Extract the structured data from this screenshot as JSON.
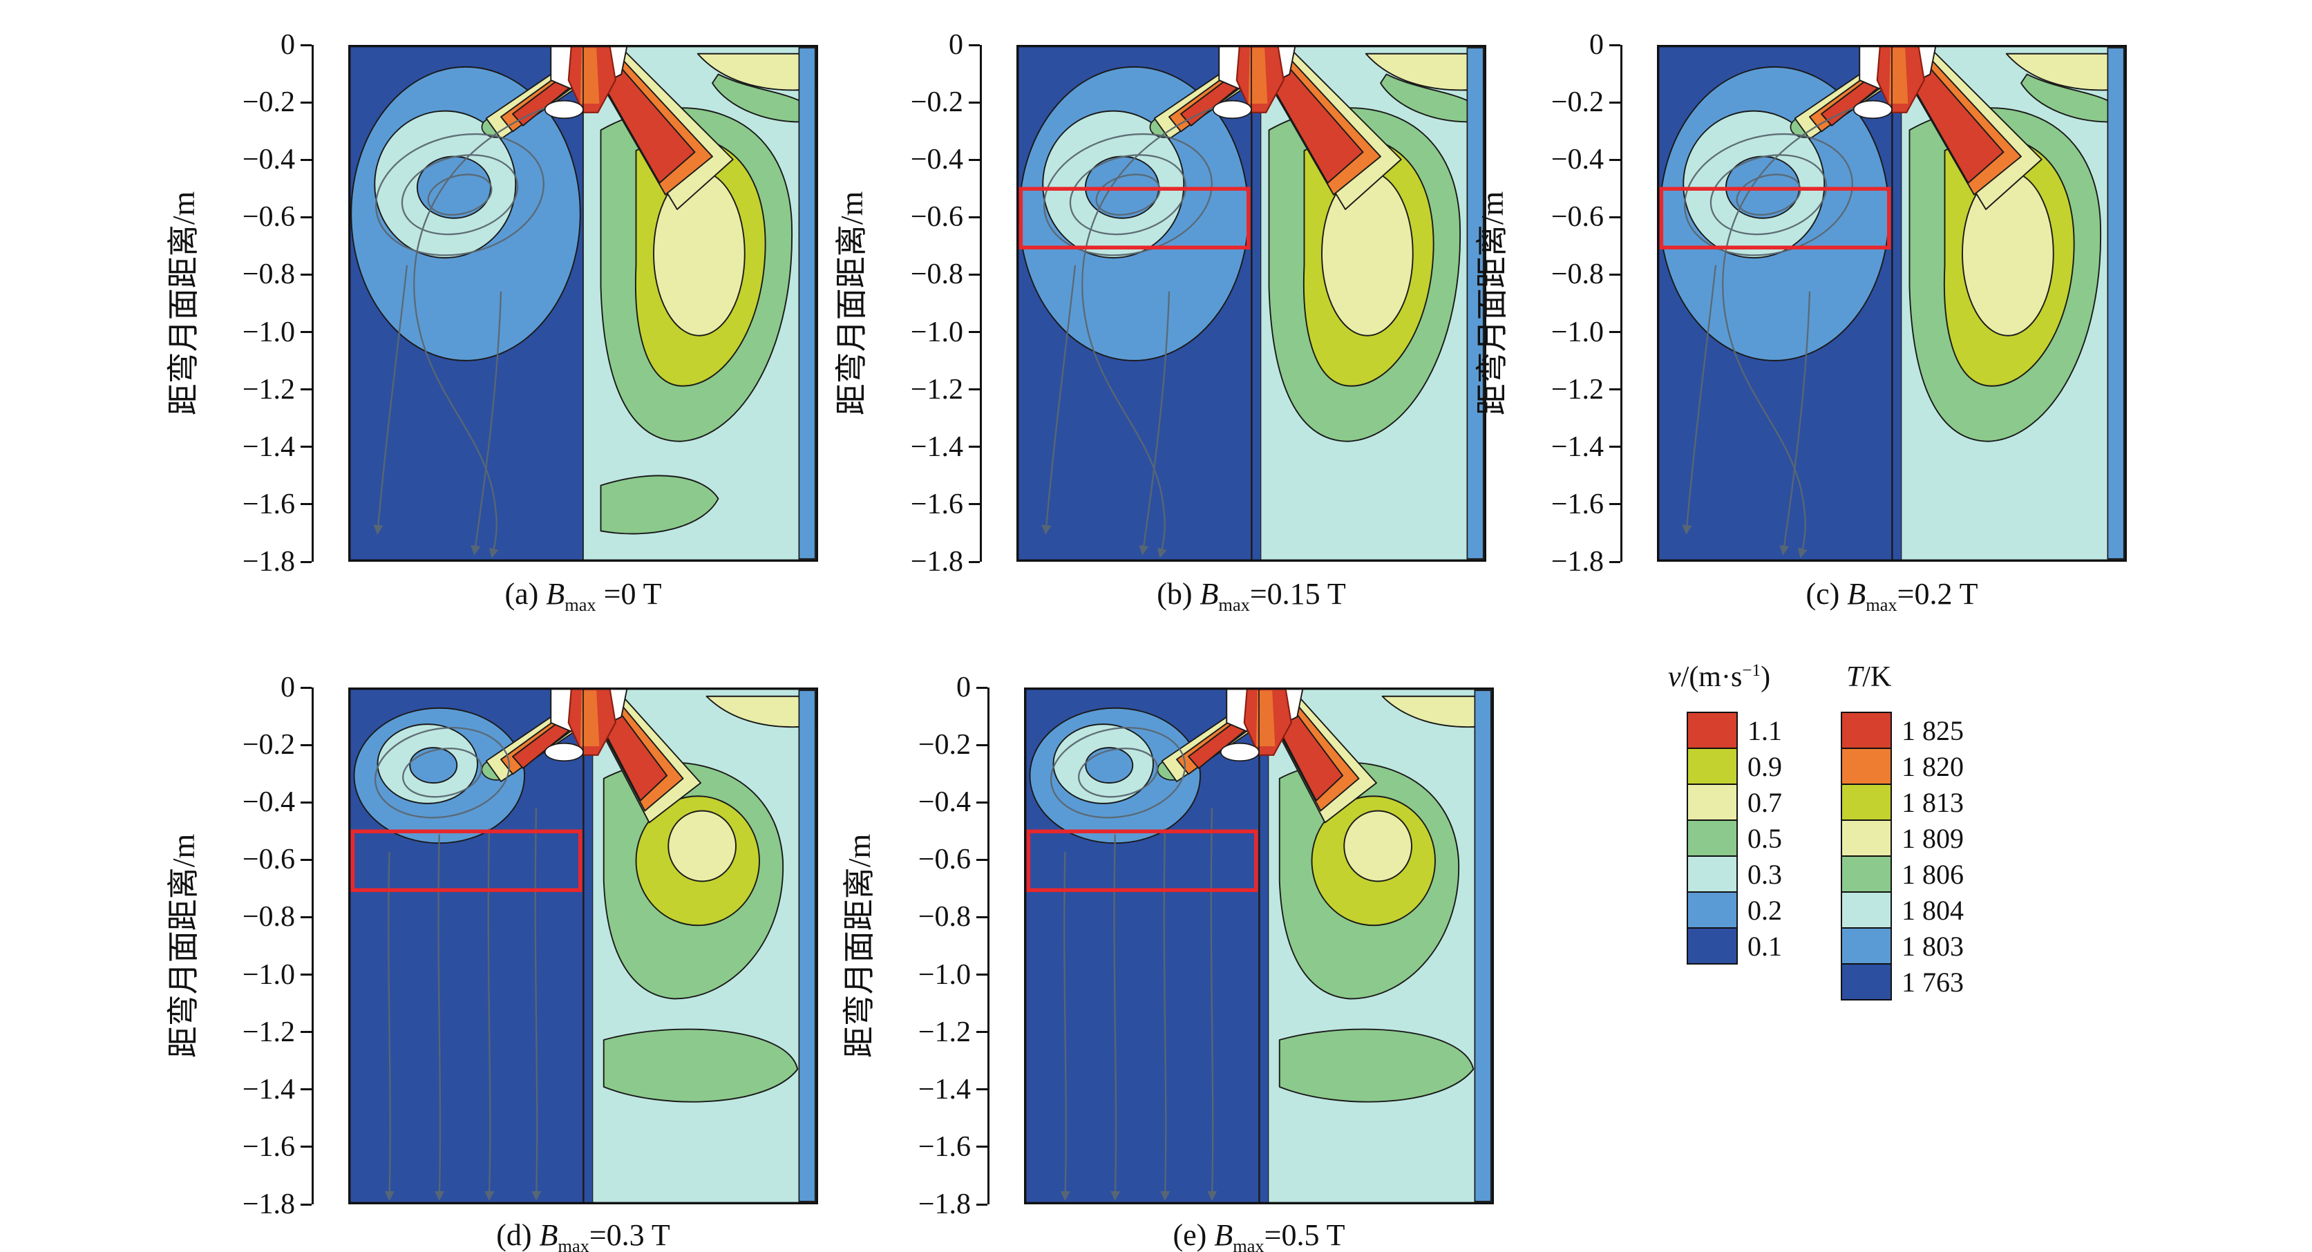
{
  "figure": {
    "highlight_color": "#e8282c",
    "y_axis": {
      "label": "距弯月面距离/m",
      "ticks": [
        "0",
        "−0.2",
        "−0.4",
        "−0.6",
        "−0.8",
        "−1.0",
        "−1.2",
        "−1.4",
        "−1.6",
        "−1.8"
      ]
    },
    "panels": [
      {
        "key": "a",
        "variant": "none",
        "red_box": false,
        "caption": {
          "prefix": "(a) ",
          "var": "B",
          "sub": "max",
          "value": " =0 T"
        }
      },
      {
        "key": "b",
        "variant": "mid",
        "red_box": true,
        "caption": {
          "prefix": "(b) ",
          "var": "B",
          "sub": "max",
          "value": "=0.15 T"
        }
      },
      {
        "key": "c",
        "variant": "mid",
        "red_box": true,
        "caption": {
          "prefix": "(c) ",
          "var": "B",
          "sub": "max",
          "value": "=0.2 T"
        }
      },
      {
        "key": "d",
        "variant": "strong",
        "red_box": true,
        "caption": {
          "prefix": "(d) ",
          "var": "B",
          "sub": "max",
          "value": "=0.3 T"
        }
      },
      {
        "key": "e",
        "variant": "strong",
        "red_box": true,
        "caption": {
          "prefix": "(e) ",
          "var": "B",
          "sub": "max",
          "value": "=0.5 T"
        }
      }
    ],
    "legends": {
      "velocity": {
        "title": {
          "var": "v",
          "mid": "/(m·s",
          "sup": "−1",
          "end": ")"
        },
        "entries": [
          {
            "label": "1.1",
            "color": "#d6402c"
          },
          {
            "label": "0.9",
            "color": "#c3d22e"
          },
          {
            "label": "0.7",
            "color": "#eaeda8"
          },
          {
            "label": "0.5",
            "color": "#8cc98c"
          },
          {
            "label": "0.3",
            "color": "#bfe7e1"
          },
          {
            "label": "0.2",
            "color": "#5b9bd5"
          },
          {
            "label": "0.1",
            "color": "#2d4fa0"
          }
        ]
      },
      "temperature": {
        "title": {
          "var": "T",
          "mid": "/K",
          "sup": "",
          "end": ""
        },
        "entries": [
          {
            "label": "1 825",
            "color": "#d6402c"
          },
          {
            "label": "1 820",
            "color": "#ee7d31"
          },
          {
            "label": "1 813",
            "color": "#c3d22e"
          },
          {
            "label": "1 809",
            "color": "#eaeda8"
          },
          {
            "label": "1 806",
            "color": "#8cc98c"
          },
          {
            "label": "1 804",
            "color": "#bfe7e1"
          },
          {
            "label": "1 803",
            "color": "#5b9bd5"
          },
          {
            "label": "1 763",
            "color": "#2d4fa0"
          }
        ]
      }
    }
  },
  "chart_data": {
    "type": "heatmap",
    "subtype": "contour-small-multiples",
    "description": "Five contour panels of a continuous-casting strand; left half of each panel shows the velocity field with streamlines, right half shows the temperature field, for increasing electromagnetic braking field strength B_max. A red rectangle highlights the region near y = −0.55 to −0.75 m in panels (b)–(e).",
    "panels": [
      {
        "label": "(a)",
        "B_max_T": 0,
        "highlight_box": false
      },
      {
        "label": "(b)",
        "B_max_T": 0.15,
        "highlight_box": true
      },
      {
        "label": "(c)",
        "B_max_T": 0.2,
        "highlight_box": true
      },
      {
        "label": "(d)",
        "B_max_T": 0.3,
        "highlight_box": true
      },
      {
        "label": "(e)",
        "B_max_T": 0.5,
        "highlight_box": true
      }
    ],
    "y_axis": {
      "label": "距弯月面距离/m",
      "range": [
        0,
        -1.8
      ],
      "tick_step": 0.2
    },
    "velocity_scale_m_per_s": [
      1.1,
      0.9,
      0.7,
      0.5,
      0.3,
      0.2,
      0.1
    ],
    "temperature_scale_K": [
      1825,
      1820,
      1813,
      1809,
      1806,
      1804,
      1803,
      1763
    ],
    "highlight_box_y_range_m": [
      -0.55,
      -0.75
    ],
    "legend_position": "right-middle",
    "grid": false
  }
}
